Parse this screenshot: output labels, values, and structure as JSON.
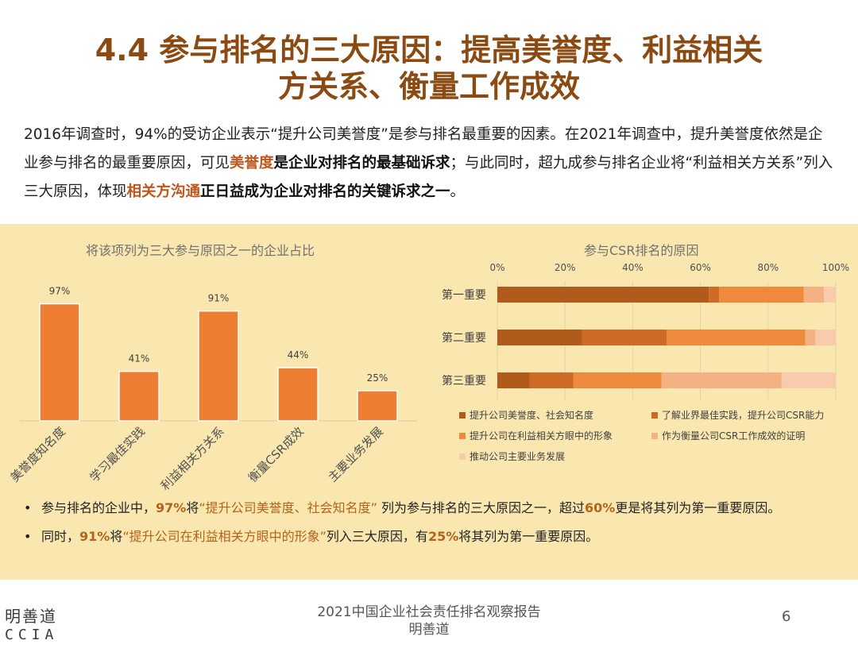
{
  "title": {
    "line1": "4.4 参与排名的三大原因：提高美誉度、利益相关",
    "line2": "方关系、衡量工作成效"
  },
  "intro": {
    "p1": "2016年调查时，94%的受访企业表示“提升公司美誉度”是参与排名最重要的因素。在2021年调查中，提升美誉度依然是企业参与排名的最重要原因，可见",
    "hl1": "美誉度",
    "b1": "是企业对排名的最基础诉求",
    "p2": "；与此同时，超九成参与排名企业将“利益相关方关系”列入三大原因，体现",
    "hl2": "相关方沟通",
    "b2": "正日益成为企业对排名的关键诉求之一",
    "p3": "。"
  },
  "chart_data": [
    {
      "type": "bar",
      "title": "将该项列为三大参与原因之一的企业占比",
      "categories": [
        "美誉度知名度",
        "学习最佳实践",
        "利益相关方关系",
        "衡量CSR成效",
        "主要业务发展"
      ],
      "values": [
        97,
        41,
        91,
        44,
        25
      ],
      "data_labels": [
        "97%",
        "41%",
        "91%",
        "44%",
        "25%"
      ],
      "ylim": [
        0,
        100
      ],
      "color": "#ed7d31"
    },
    {
      "type": "bar",
      "orientation": "horizontal",
      "stacked": true,
      "title": "参与CSR排名的原因",
      "categories": [
        "第一重要",
        "第二重要",
        "第三重要"
      ],
      "xlim": [
        0,
        100
      ],
      "x_ticks": [
        "0%",
        "20%",
        "40%",
        "60%",
        "80%",
        "100%"
      ],
      "series": [
        {
          "name": "提升公司美誉度、社会知名度",
          "color": "#b05a1c",
          "values": [
            62.5,
            25,
            9.5
          ]
        },
        {
          "name": "了解业界最佳实践，提升公司CSR能力",
          "color": "#cc6a26",
          "values": [
            3,
            25,
            13
          ]
        },
        {
          "name": "提升公司在利益相关方眼中的形象",
          "color": "#ef8a3c",
          "values": [
            25,
            41,
            26
          ]
        },
        {
          "name": "作为衡量公司CSR工作成效的证明",
          "color": "#f4b183",
          "values": [
            6,
            3,
            35.5
          ]
        },
        {
          "name": "推动公司主要业务发展",
          "color": "#f8cbad",
          "values": [
            3.5,
            6,
            16
          ]
        }
      ],
      "legend_position": "bottom"
    }
  ],
  "bullets": [
    {
      "dot": "•",
      "a": "参与排名的企业中，",
      "e1": "97%",
      "b": "将",
      "q1": "“提升公司美誉度、社会知名度”",
      "c": " 列为参与排名的三大原因之一，超过",
      "e2": "60%",
      "d": "更是将其列为第一重要原因。"
    },
    {
      "dot": "•",
      "a": "同时，",
      "e1": "91%",
      "b": "将",
      "q1": "“提升公司在利益相关方眼中的形象”",
      "c": "列入三大原因，有",
      "e2": "25%",
      "d": "将其列为第一重要原因。"
    }
  ],
  "logo": {
    "zh": "明善道",
    "en": "CCIA"
  },
  "footer": {
    "line1": "2021中国企业社会责任排名观察报告",
    "line2": "明善道"
  },
  "page_number": "6"
}
